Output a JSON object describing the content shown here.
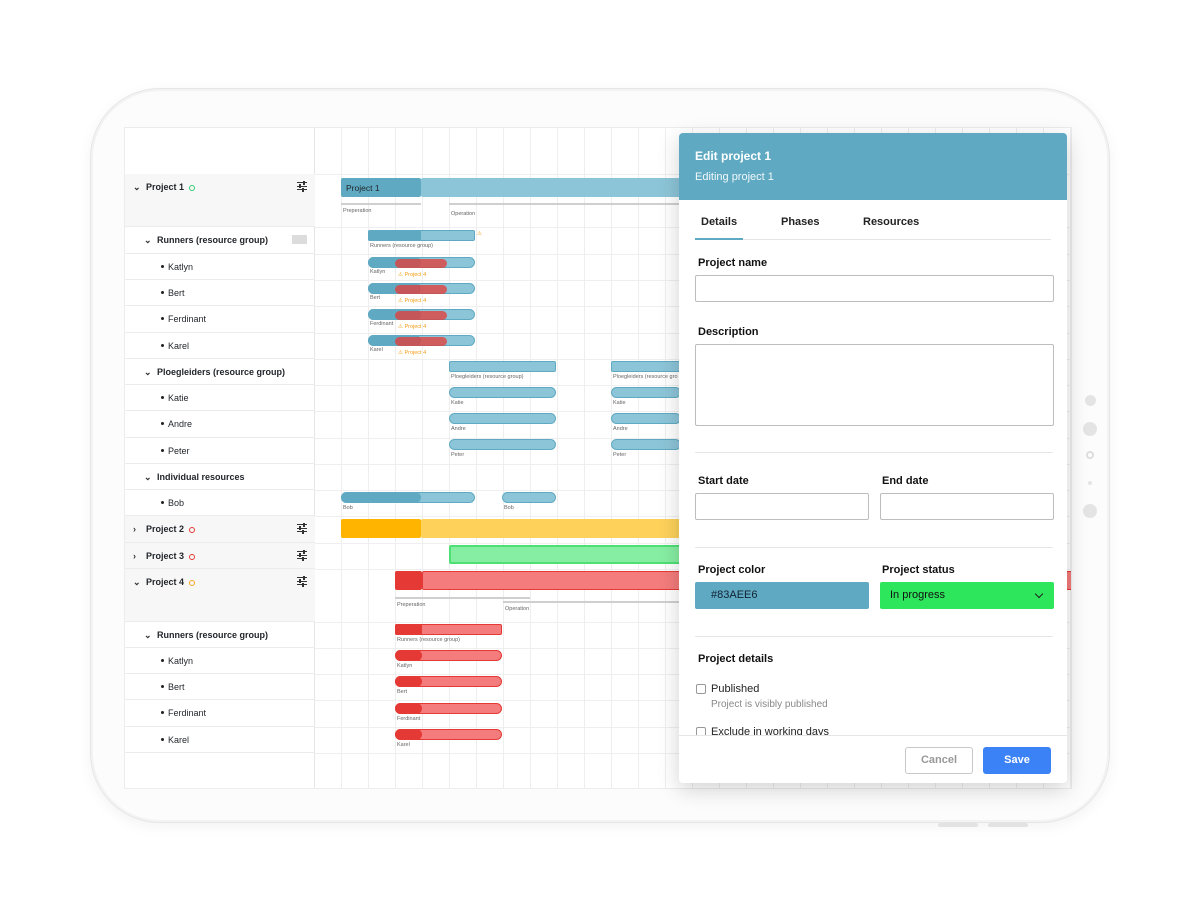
{
  "sidebar": {
    "rows": [
      {
        "label": "Project 1",
        "kind": "project"
      },
      {
        "label": "Runners (resource group)",
        "kind": "group"
      },
      {
        "label": "Katlyn",
        "kind": "person"
      },
      {
        "label": "Bert",
        "kind": "person"
      },
      {
        "label": "Ferdinant",
        "kind": "person"
      },
      {
        "label": "Karel",
        "kind": "person"
      },
      {
        "label": "Ploegleiders (resource group)",
        "kind": "group"
      },
      {
        "label": "Katie",
        "kind": "person"
      },
      {
        "label": "Andre",
        "kind": "person"
      },
      {
        "label": "Peter",
        "kind": "person"
      },
      {
        "label": "Individual resources",
        "kind": "group"
      },
      {
        "label": "Bob",
        "kind": "person"
      },
      {
        "label": "Project 2",
        "kind": "project"
      },
      {
        "label": "Project 3",
        "kind": "project"
      },
      {
        "label": "Project 4",
        "kind": "project"
      },
      {
        "label": "Runners (resource group)",
        "kind": "group"
      },
      {
        "label": "Katlyn",
        "kind": "person"
      },
      {
        "label": "Bert",
        "kind": "person"
      },
      {
        "label": "Ferdinant",
        "kind": "person"
      },
      {
        "label": "Karel",
        "kind": "person"
      }
    ],
    "project_status_colors": {
      "Project 1": "#2ecc71",
      "Project 2": "#e53935",
      "Project 3": "#e53935",
      "Project 4": "#f5a623"
    }
  },
  "timeline": {
    "project1_bar": "Project 1",
    "phase_preperation": "Preperation",
    "phase_operation": "Operation",
    "label_runners": "Runners (resource group)",
    "label_ploeg": "Ploegleiders (resource group)",
    "label_ploeg_trunc": "Ploegleiders (resource gro",
    "warn_project4": "⚠ Project 4",
    "names": {
      "katlyn": "Katlyn",
      "bert": "Bert",
      "ferdinant": "Ferdinant",
      "karel": "Karel",
      "katie": "Katie",
      "andre": "Andre",
      "peter": "Peter",
      "bob": "Bob"
    },
    "colors": {
      "teal": "#5faac2",
      "teal_light": "#8cc5d8",
      "orange": "#ffb400",
      "orange_light": "#fdd15a",
      "green": "#4ee073",
      "green_light": "#86eea2",
      "red": "#e53935",
      "red_light": "#f47c7c"
    }
  },
  "modal": {
    "title": "Edit project 1",
    "subtitle": "Editing project 1",
    "tabs": [
      "Details",
      "Phases",
      "Resources"
    ],
    "project_name_label": "Project name",
    "project_name_value": "",
    "description_label": "Description",
    "description_value": "",
    "start_date_label": "Start date",
    "end_date_label": "End date",
    "project_color_label": "Project color",
    "project_color_value": "#83AEE6",
    "project_status_label": "Project status",
    "project_status_value": "In progress",
    "project_details_label": "Project details",
    "published_label": "Published",
    "published_sub": "Project is visibly published",
    "exclude_label": "Exclude in working days",
    "cancel_label": "Cancel",
    "save_label": "Save"
  }
}
